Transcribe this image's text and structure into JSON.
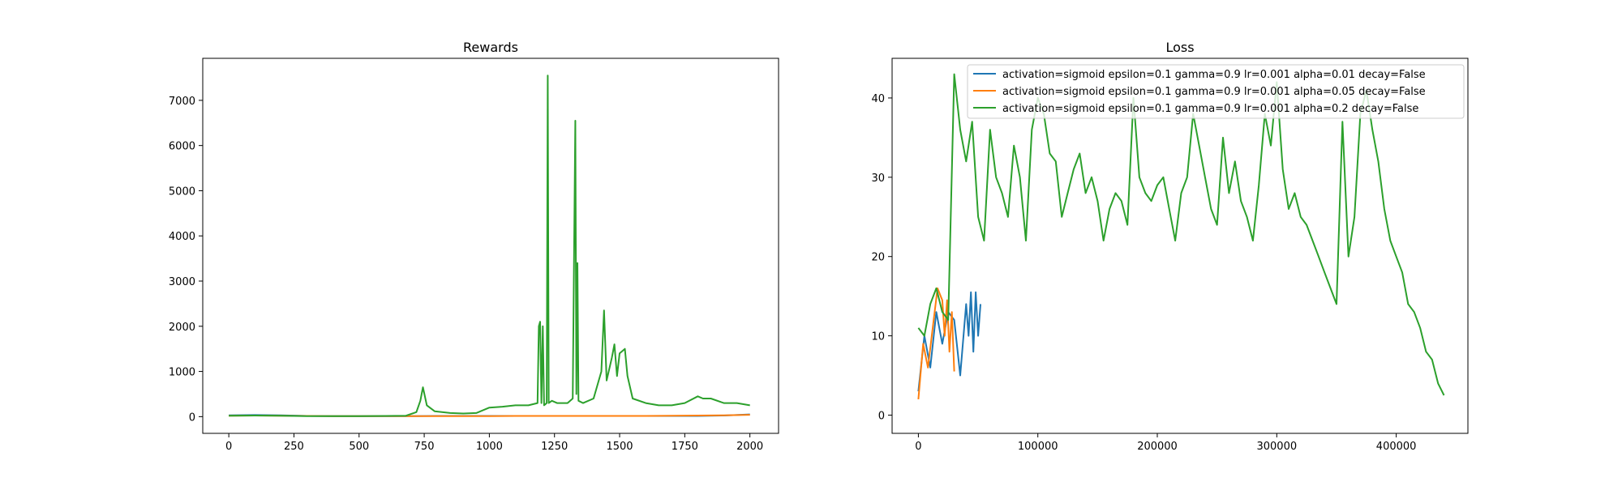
{
  "chart_data": [
    {
      "type": "line",
      "title": "Rewards",
      "xlabel": "",
      "ylabel": "",
      "xlim": [
        -100,
        2110
      ],
      "ylim": [
        -370,
        7930
      ],
      "xticks": [
        0,
        250,
        500,
        750,
        1000,
        1250,
        1500,
        1750,
        2000
      ],
      "yticks": [
        0,
        1000,
        2000,
        3000,
        4000,
        5000,
        6000,
        7000
      ],
      "grid": false,
      "series": [
        {
          "color": "#1f77b4",
          "x": [
            0,
            100,
            200,
            300,
            400,
            500,
            600,
            700,
            800,
            900,
            1000,
            1100,
            1200,
            1300,
            1400,
            1500,
            1600,
            1700,
            1800,
            1900,
            2000
          ],
          "y": [
            30,
            35,
            30,
            15,
            10,
            10,
            12,
            12,
            15,
            15,
            15,
            15,
            15,
            15,
            15,
            15,
            15,
            15,
            15,
            25,
            50
          ]
        },
        {
          "color": "#ff7f0e",
          "x": [
            0,
            100,
            200,
            300,
            400,
            500,
            600,
            700,
            800,
            900,
            1000,
            1100,
            1200,
            1300,
            1400,
            1500,
            1600,
            1700,
            1800,
            1900,
            2000
          ],
          "y": [
            20,
            25,
            20,
            15,
            10,
            10,
            10,
            10,
            12,
            12,
            12,
            15,
            15,
            15,
            15,
            15,
            15,
            20,
            25,
            30,
            40
          ]
        },
        {
          "color": "#2ca02c",
          "x": [
            0,
            100,
            200,
            300,
            400,
            500,
            600,
            680,
            720,
            735,
            745,
            760,
            790,
            850,
            900,
            950,
            1000,
            1050,
            1100,
            1150,
            1185,
            1190,
            1195,
            1200,
            1205,
            1210,
            1220,
            1224,
            1228,
            1240,
            1260,
            1300,
            1320,
            1330,
            1334,
            1338,
            1342,
            1360,
            1400,
            1430,
            1440,
            1450,
            1470,
            1480,
            1490,
            1500,
            1520,
            1530,
            1550,
            1600,
            1650,
            1700,
            1750,
            1800,
            1820,
            1850,
            1900,
            1950,
            2000
          ],
          "y": [
            20,
            25,
            20,
            10,
            10,
            10,
            15,
            20,
            100,
            350,
            650,
            250,
            120,
            80,
            70,
            80,
            200,
            220,
            250,
            250,
            300,
            2000,
            2100,
            300,
            2000,
            250,
            300,
            7550,
            300,
            350,
            300,
            300,
            400,
            6550,
            500,
            3400,
            350,
            300,
            400,
            1000,
            2350,
            800,
            1300,
            1600,
            900,
            1400,
            1500,
            900,
            400,
            300,
            250,
            250,
            300,
            450,
            400,
            400,
            300,
            300,
            250
          ]
        }
      ]
    },
    {
      "type": "line",
      "title": "Loss",
      "xlabel": "",
      "ylabel": "",
      "xlim": [
        -22000,
        460000
      ],
      "ylim": [
        -2.3,
        45.0
      ],
      "xticks": [
        0,
        100000,
        200000,
        300000,
        400000
      ],
      "yticks": [
        0,
        10,
        20,
        30,
        40
      ],
      "grid": false,
      "legend": {
        "placement": "top-right",
        "entries": [
          "activation=sigmoid epsilon=0.1 gamma=0.9 lr=0.001 alpha=0.01 decay=False",
          "activation=sigmoid epsilon=0.1 gamma=0.9 lr=0.001 alpha=0.05 decay=False",
          "activation=sigmoid epsilon=0.1 gamma=0.9 lr=0.001 alpha=0.2 decay=False"
        ]
      },
      "series": [
        {
          "name": "activation=sigmoid epsilon=0.1 gamma=0.9 lr=0.001 alpha=0.01 decay=False",
          "color": "#1f77b4",
          "x": [
            0,
            5000,
            10000,
            15000,
            20000,
            25000,
            30000,
            35000,
            40000,
            42000,
            44000,
            46000,
            48000,
            50000,
            52000
          ],
          "y": [
            3,
            10,
            6,
            13,
            9,
            13,
            12,
            5,
            14,
            10,
            15.5,
            8,
            15.5,
            10,
            14
          ]
        },
        {
          "name": "activation=sigmoid epsilon=0.1 gamma=0.9 lr=0.001 alpha=0.05 decay=False",
          "color": "#ff7f0e",
          "x": [
            0,
            4000,
            8000,
            12000,
            16000,
            20000,
            22000,
            24000,
            26000,
            28000,
            30000
          ],
          "y": [
            2,
            9,
            6,
            11,
            16,
            14.5,
            10,
            14.5,
            8,
            13,
            5.5
          ]
        },
        {
          "name": "activation=sigmoid epsilon=0.1 gamma=0.9 lr=0.001 alpha=0.2 decay=False",
          "color": "#2ca02c",
          "x": [
            0,
            5000,
            10000,
            15000,
            20000,
            25000,
            30000,
            35000,
            40000,
            45000,
            50000,
            55000,
            60000,
            65000,
            70000,
            75000,
            80000,
            85000,
            90000,
            95000,
            100000,
            105000,
            110000,
            115000,
            120000,
            125000,
            130000,
            135000,
            140000,
            145000,
            150000,
            155000,
            160000,
            165000,
            170000,
            175000,
            180000,
            185000,
            190000,
            195000,
            200000,
            205000,
            210000,
            215000,
            220000,
            225000,
            230000,
            235000,
            240000,
            245000,
            250000,
            255000,
            260000,
            265000,
            270000,
            275000,
            280000,
            285000,
            290000,
            295000,
            300000,
            305000,
            310000,
            315000,
            320000,
            325000,
            330000,
            335000,
            340000,
            345000,
            350000,
            355000,
            360000,
            365000,
            370000,
            375000,
            380000,
            385000,
            390000,
            395000,
            400000,
            405000,
            410000,
            415000,
            420000,
            425000,
            430000,
            435000,
            440000
          ],
          "y": [
            11,
            10,
            14,
            16,
            13,
            12,
            43,
            36,
            32,
            37,
            25,
            22,
            36,
            30,
            28,
            25,
            34,
            30,
            22,
            36,
            40,
            38,
            33,
            32,
            25,
            28,
            31,
            33,
            28,
            30,
            27,
            22,
            26,
            28,
            27,
            24,
            40,
            30,
            28,
            27,
            29,
            30,
            26,
            22,
            28,
            30,
            38,
            34,
            30,
            26,
            24,
            35,
            28,
            32,
            27,
            25,
            22,
            29,
            38,
            34,
            42,
            31,
            26,
            28,
            25,
            24,
            22,
            20,
            18,
            16,
            14,
            37,
            20,
            25,
            38,
            41,
            36,
            32,
            26,
            22,
            20,
            18,
            14,
            13,
            11,
            8,
            7,
            4,
            2.5
          ]
        }
      ]
    }
  ]
}
